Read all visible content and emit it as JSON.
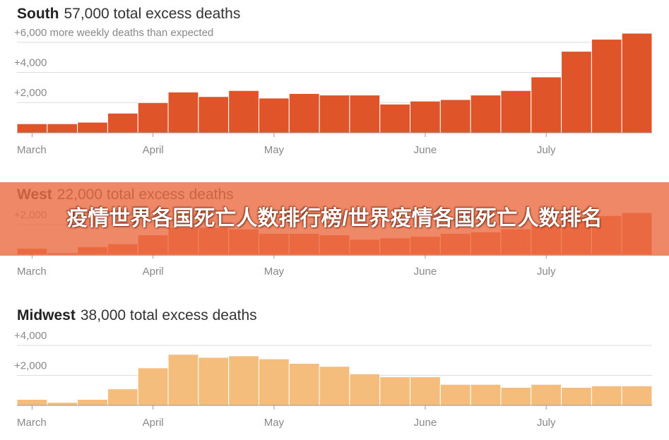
{
  "chart_data": [
    {
      "type": "bar",
      "title": "South",
      "subtitle": "57,000 total excess deaths",
      "color": "#e0542a",
      "categories": [
        "March",
        null,
        null,
        null,
        "April",
        null,
        null,
        null,
        "May",
        null,
        null,
        null,
        null,
        "June",
        null,
        null,
        null,
        "July",
        null,
        null,
        null
      ],
      "values": [
        600,
        600,
        700,
        1300,
        2000,
        2700,
        2400,
        2800,
        2300,
        2600,
        2500,
        2500,
        1900,
        2100,
        2200,
        2500,
        2800,
        3700,
        5400,
        6200,
        6600
      ],
      "ylim": [
        0,
        6600
      ],
      "yticks": [
        {
          "value": 2000,
          "label": "+2,000"
        },
        {
          "value": 4000,
          "label": "+4,000"
        },
        {
          "value": 6000,
          "label": "+6,000 more weekly deaths than expected"
        }
      ],
      "grid": true
    },
    {
      "type": "bar",
      "title": "West",
      "subtitle": "22,000 total excess deaths",
      "color": "#e8562a",
      "categories": [
        "March",
        null,
        null,
        null,
        "April",
        null,
        null,
        null,
        "May",
        null,
        null,
        null,
        null,
        "June",
        null,
        null,
        null,
        "July",
        null,
        null,
        null
      ],
      "values": [
        400,
        100,
        500,
        700,
        1300,
        1800,
        1800,
        1700,
        1400,
        1400,
        1300,
        1000,
        1100,
        1200,
        1400,
        1500,
        1700,
        2000,
        2500,
        2600,
        2800
      ],
      "ylim": [
        0,
        2800
      ],
      "yticks": [
        {
          "value": 2000,
          "label": "+2,000"
        }
      ],
      "grid": true
    },
    {
      "type": "bar",
      "title": "Midwest",
      "subtitle": "38,000 total excess deaths",
      "color": "#f5bd7c",
      "categories": [
        "March",
        null,
        null,
        null,
        "April",
        null,
        null,
        null,
        "May",
        null,
        null,
        null,
        null,
        "June",
        null,
        null,
        null,
        "July",
        null,
        null,
        null
      ],
      "values": [
        400,
        200,
        400,
        1100,
        2500,
        3400,
        3200,
        3300,
        3100,
        2800,
        2600,
        2100,
        1900,
        1900,
        1400,
        1400,
        1200,
        1400,
        1200,
        1300,
        1300
      ],
      "ylim": [
        0,
        4000
      ],
      "yticks": [
        {
          "value": 2000,
          "label": "+2,000"
        },
        {
          "value": 4000,
          "label": "+4,000"
        }
      ],
      "grid": true
    }
  ],
  "overlay_title": "疫情世界各国死亡人数排行榜/世界疫情各国死亡人数排名"
}
